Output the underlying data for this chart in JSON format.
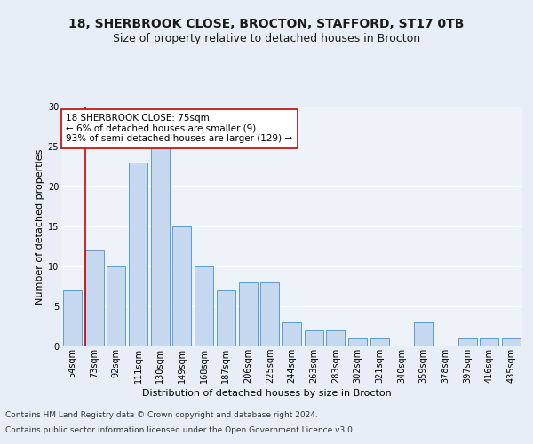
{
  "title_line1": "18, SHERBROOK CLOSE, BROCTON, STAFFORD, ST17 0TB",
  "title_line2": "Size of property relative to detached houses in Brocton",
  "xlabel": "Distribution of detached houses by size in Brocton",
  "ylabel": "Number of detached properties",
  "footer_line1": "Contains HM Land Registry data © Crown copyright and database right 2024.",
  "footer_line2": "Contains public sector information licensed under the Open Government Licence v3.0.",
  "categories": [
    "54sqm",
    "73sqm",
    "92sqm",
    "111sqm",
    "130sqm",
    "149sqm",
    "168sqm",
    "187sqm",
    "206sqm",
    "225sqm",
    "244sqm",
    "263sqm",
    "283sqm",
    "302sqm",
    "321sqm",
    "340sqm",
    "359sqm",
    "378sqm",
    "397sqm",
    "416sqm",
    "435sqm"
  ],
  "values": [
    7,
    12,
    10,
    23,
    25,
    15,
    10,
    7,
    8,
    8,
    3,
    2,
    2,
    1,
    1,
    0,
    3,
    0,
    1,
    1,
    1
  ],
  "bar_color": "#c6d9f0",
  "bar_edge_color": "#5b9bd5",
  "marker_line_color": "#cc0000",
  "annotation_text": "18 SHERBROOK CLOSE: 75sqm\n← 6% of detached houses are smaller (9)\n93% of semi-detached houses are larger (129) →",
  "annotation_box_color": "#ffffff",
  "annotation_box_edge": "#cc0000",
  "ylim": [
    0,
    30
  ],
  "yticks": [
    0,
    5,
    10,
    15,
    20,
    25,
    30
  ],
  "bg_color": "#e8eef7",
  "plot_bg_color": "#eef2f9",
  "grid_color": "#ffffff",
  "title_fontsize": 10,
  "subtitle_fontsize": 9,
  "axis_label_fontsize": 8,
  "tick_fontsize": 7,
  "annotation_fontsize": 7.5,
  "footer_fontsize": 6.5
}
